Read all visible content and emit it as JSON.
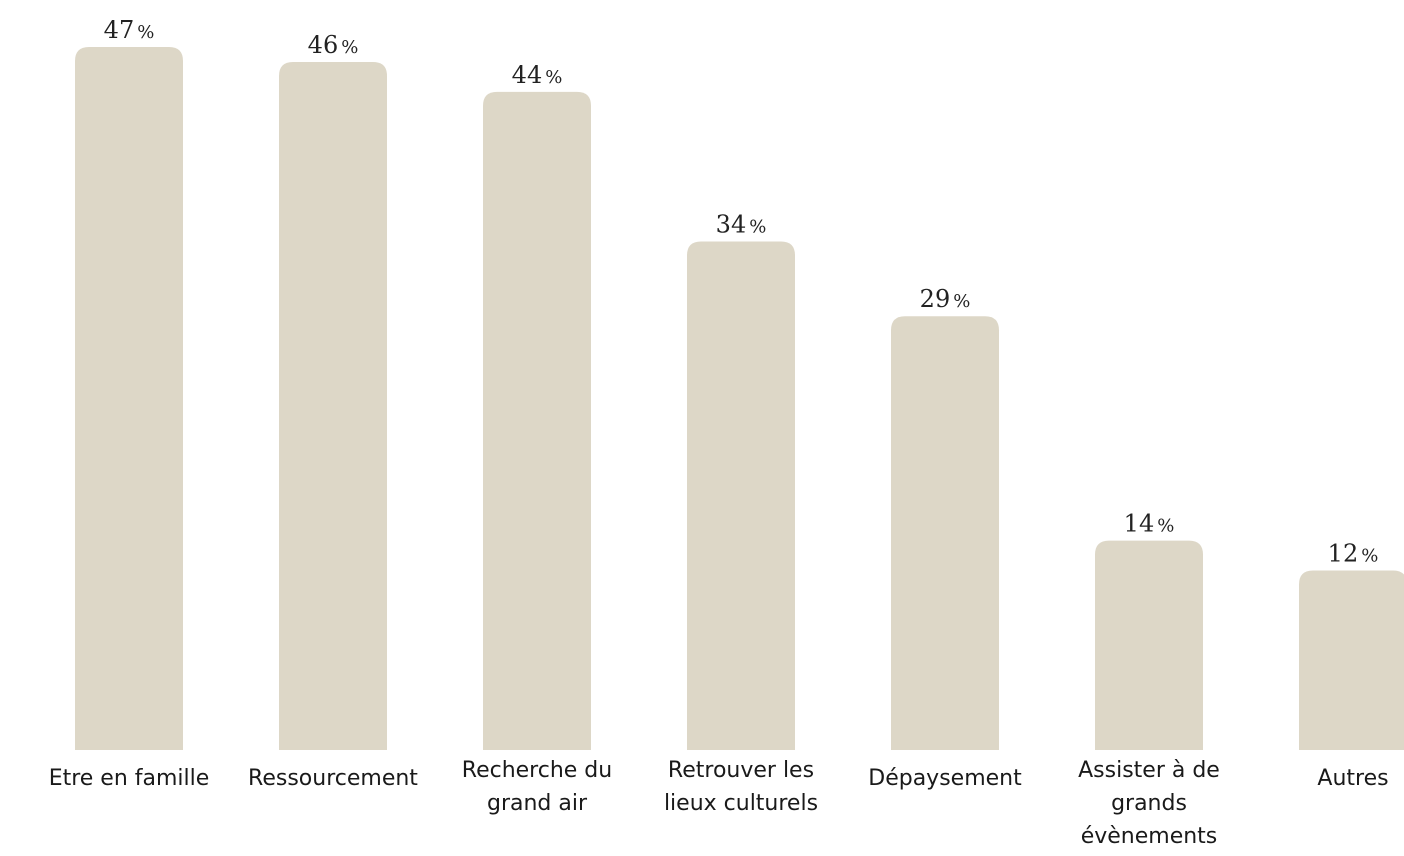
{
  "chart_data": {
    "type": "bar",
    "categories": [
      [
        "Etre en famille"
      ],
      [
        "Ressourcement"
      ],
      [
        "Recherche du",
        "grand air"
      ],
      [
        "Retrouver les",
        "lieux culturels"
      ],
      [
        "Dépaysement"
      ],
      [
        "Assister à de",
        "grands",
        "évènements"
      ],
      [
        "Autres"
      ]
    ],
    "values": [
      47,
      46,
      44,
      34,
      29,
      14,
      12
    ],
    "value_labels": [
      "47",
      "46",
      "44",
      "34",
      "29",
      "14",
      "12"
    ],
    "value_suffix": "%",
    "title": "",
    "xlabel": "",
    "ylabel": "",
    "ylim": [
      0,
      47
    ],
    "grid": false,
    "legend": "none",
    "bar_color": "#ddd7c7"
  }
}
